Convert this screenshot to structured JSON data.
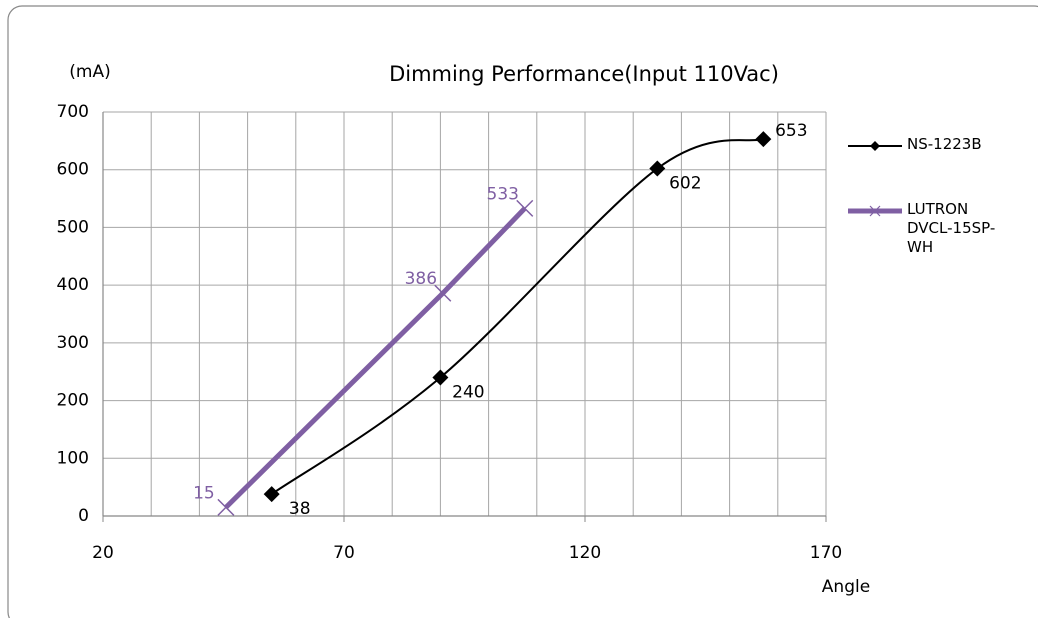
{
  "chart_data": {
    "type": "line",
    "title": "Dimming Performance(Input 110Vac)",
    "y_label": "(mA)",
    "x_label": "Angle",
    "xlim": [
      20,
      170
    ],
    "xticks": [
      20,
      70,
      120,
      170
    ],
    "xgrid": [
      20,
      30,
      40,
      50,
      60,
      70,
      80,
      90,
      100,
      110,
      120,
      130,
      140,
      150,
      160,
      170
    ],
    "ylim": [
      0,
      700
    ],
    "yticks": [
      0,
      100,
      200,
      300,
      400,
      500,
      600,
      700
    ],
    "grid": true,
    "legend": "right",
    "series": [
      {
        "name": "NS-1223B",
        "color": "#000000",
        "marker": "diamond",
        "smooth": true,
        "x": [
          55,
          90,
          135,
          157
        ],
        "values": [
          38,
          240,
          602,
          653
        ]
      },
      {
        "name": "LUTRON DVCL-15SP-WH",
        "color": "#7f5fa3",
        "marker": "x",
        "smooth": false,
        "x": [
          45.5,
          90.5,
          107.5
        ],
        "values": [
          15,
          386,
          533
        ]
      }
    ]
  }
}
